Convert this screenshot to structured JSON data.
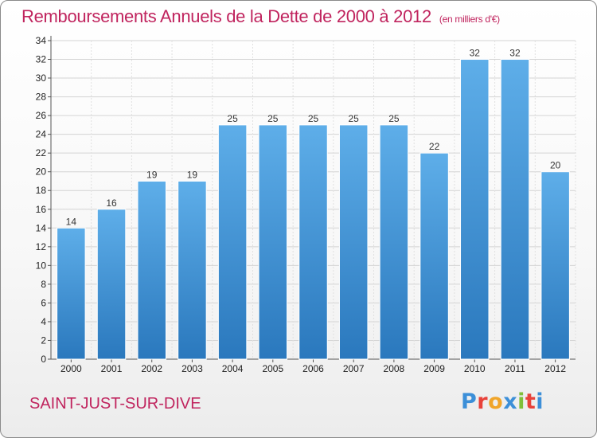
{
  "chart_data": {
    "type": "bar",
    "title": "Remboursements Annuels de la Dette de 2000 à 2012",
    "unit_note": "(en milliers d'€)",
    "categories": [
      "2000",
      "2001",
      "2002",
      "2003",
      "2004",
      "2005",
      "2006",
      "2007",
      "2008",
      "2009",
      "2010",
      "2011",
      "2012"
    ],
    "values": [
      14,
      16,
      19,
      19,
      25,
      25,
      25,
      25,
      25,
      22,
      32,
      32,
      20
    ],
    "ylim": [
      0,
      34
    ],
    "yticks": [
      0,
      2,
      4,
      6,
      8,
      10,
      12,
      14,
      16,
      18,
      20,
      22,
      24,
      26,
      28,
      30,
      32,
      34
    ],
    "grid": true,
    "bar_color": "#3b8fd4"
  },
  "place": "SAINT-JUST-SUR-DIVE",
  "logo": {
    "letters": [
      "P",
      "r",
      "o",
      "x",
      "i",
      "t",
      "i"
    ],
    "colors": [
      "#3c8fd8",
      "#e8423a",
      "#f0a52a",
      "#3c8fd8",
      "#7fbf3a",
      "#e8423a",
      "#3c8fd8"
    ]
  }
}
